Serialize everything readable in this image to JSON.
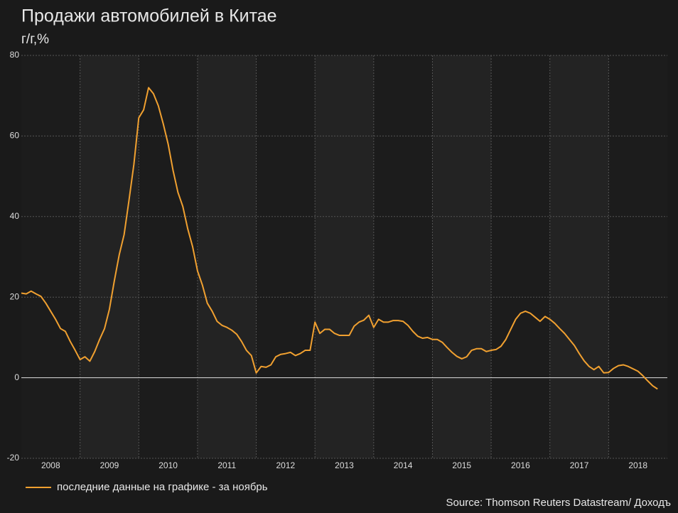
{
  "chart_data": {
    "type": "line",
    "title": "Продажи автомобилей в Китае",
    "subtitle": "г/г,%",
    "source": "Source: Thomson Reuters Datastream/ Доходъ",
    "legend": "bottom-left",
    "grid": true,
    "xlim": [
      2008,
      2019
    ],
    "xticks": [
      {
        "value": 2008.5,
        "label": "2008"
      },
      {
        "value": 2009.5,
        "label": "2009"
      },
      {
        "value": 2010.5,
        "label": "2010"
      },
      {
        "value": 2011.5,
        "label": "2011"
      },
      {
        "value": 2012.5,
        "label": "2012"
      },
      {
        "value": 2013.5,
        "label": "2013"
      },
      {
        "value": 2014.5,
        "label": "2014"
      },
      {
        "value": 2015.5,
        "label": "2015"
      },
      {
        "value": 2016.5,
        "label": "2016"
      },
      {
        "value": 2017.5,
        "label": "2017"
      },
      {
        "value": 2018.5,
        "label": "2018"
      }
    ],
    "ylim": [
      -20,
      80
    ],
    "yticks": [
      -20,
      0,
      20,
      40,
      60,
      80
    ],
    "x": [
      2008,
      2008.083,
      2008.167,
      2008.25,
      2008.333,
      2008.417,
      2008.5,
      2008.583,
      2008.667,
      2008.75,
      2008.833,
      2008.917,
      2009,
      2009.083,
      2009.167,
      2009.25,
      2009.333,
      2009.417,
      2009.5,
      2009.583,
      2009.667,
      2009.75,
      2009.833,
      2009.917,
      2010,
      2010.083,
      2010.167,
      2010.25,
      2010.333,
      2010.417,
      2010.5,
      2010.583,
      2010.667,
      2010.75,
      2010.833,
      2010.917,
      2011,
      2011.083,
      2011.167,
      2011.25,
      2011.333,
      2011.417,
      2011.5,
      2011.583,
      2011.667,
      2011.75,
      2011.833,
      2011.917,
      2012,
      2012.083,
      2012.167,
      2012.25,
      2012.333,
      2012.417,
      2012.5,
      2012.583,
      2012.667,
      2012.75,
      2012.833,
      2012.917,
      2013,
      2013.083,
      2013.167,
      2013.25,
      2013.333,
      2013.417,
      2013.5,
      2013.583,
      2013.667,
      2013.75,
      2013.833,
      2013.917,
      2014,
      2014.083,
      2014.167,
      2014.25,
      2014.333,
      2014.417,
      2014.5,
      2014.583,
      2014.667,
      2014.75,
      2014.833,
      2014.917,
      2015,
      2015.083,
      2015.167,
      2015.25,
      2015.333,
      2015.417,
      2015.5,
      2015.583,
      2015.667,
      2015.75,
      2015.833,
      2015.917,
      2016,
      2016.083,
      2016.167,
      2016.25,
      2016.333,
      2016.417,
      2016.5,
      2016.583,
      2016.667,
      2016.75,
      2016.833,
      2016.917,
      2017,
      2017.083,
      2017.167,
      2017.25,
      2017.333,
      2017.417,
      2017.5,
      2017.583,
      2017.667,
      2017.75,
      2017.833,
      2017.917,
      2018,
      2018.083,
      2018.167,
      2018.25,
      2018.333,
      2018.417,
      2018.5,
      2018.583,
      2018.667,
      2018.75,
      2018.833
    ],
    "series": [
      {
        "name": "последние данные на графике - за ноябрь",
        "color": "#f0a030",
        "values": [
          21,
          20.8,
          21.5,
          20.8,
          20.2,
          18.5,
          16.5,
          14.5,
          12.2,
          11.5,
          9,
          6.8,
          4.5,
          5.2,
          4.1,
          6.5,
          9.5,
          12.2,
          17,
          24,
          30.5,
          35.5,
          44,
          53,
          64.5,
          66.5,
          72,
          70.5,
          67.5,
          63,
          58,
          51.5,
          46,
          42.5,
          37,
          32.5,
          26.5,
          23,
          18.5,
          16.5,
          14,
          13,
          12.5,
          11.8,
          10.8,
          9,
          6.8,
          5.5,
          1.2,
          2.8,
          2.6,
          3.2,
          5.2,
          5.8,
          6,
          6.3,
          5.5,
          6,
          6.8,
          6.8,
          13.8,
          11,
          12,
          12,
          11,
          10.5,
          10.5,
          10.5,
          12.8,
          13.8,
          14.3,
          15.5,
          12.5,
          14.5,
          13.8,
          13.8,
          14.2,
          14.2,
          14,
          13,
          11.5,
          10.3,
          9.8,
          10,
          9.5,
          9.5,
          8.8,
          7.5,
          6.3,
          5.3,
          4.7,
          5.2,
          6.8,
          7.2,
          7.2,
          6.5,
          6.8,
          7,
          7.8,
          9.5,
          12,
          14.5,
          16,
          16.5,
          16,
          15,
          14,
          15.2,
          14.5,
          13.5,
          12.2,
          11,
          9.5,
          8,
          6,
          4.2,
          2.8,
          2,
          2.8,
          1.2,
          1.3,
          2.3,
          3,
          3.2,
          2.8,
          2.2,
          1.6,
          0.5,
          -0.8,
          -2,
          -2.8
        ]
      }
    ]
  }
}
